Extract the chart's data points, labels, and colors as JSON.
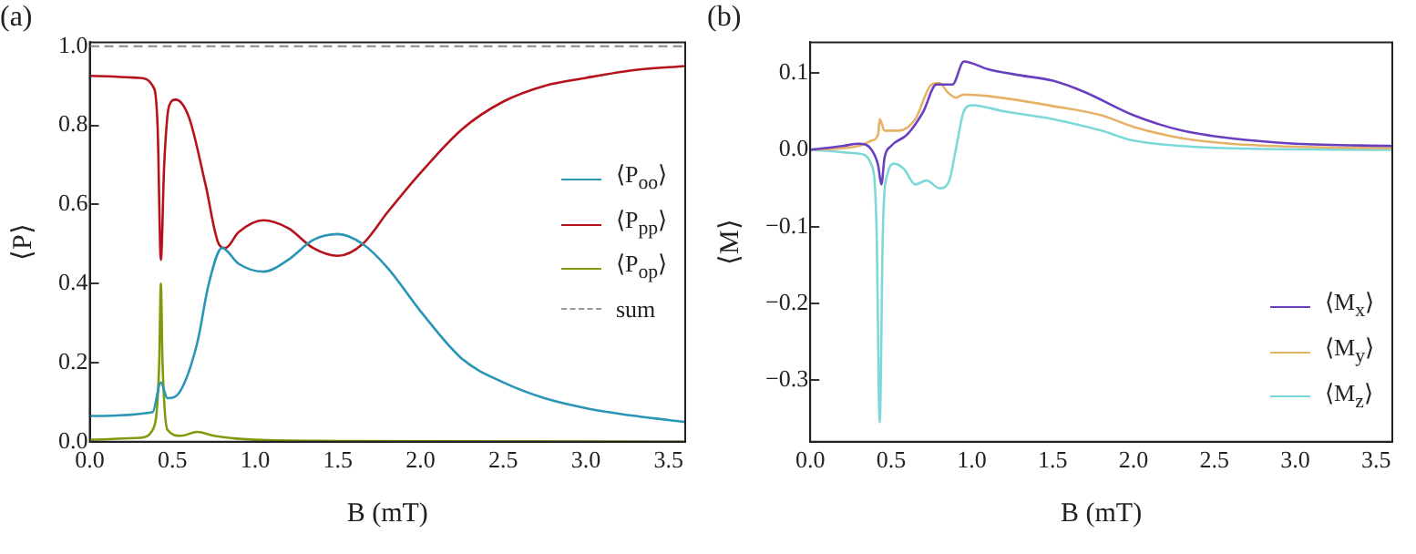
{
  "chart_data": [
    {
      "type": "line",
      "title": "(a)",
      "xlabel": "B (mT)",
      "ylabel": "⟨P⟩",
      "legend": "right",
      "xlim": [
        0,
        3.6
      ],
      "ylim": [
        0,
        1.01
      ],
      "xticks": [
        {
          "value": 0,
          "label": "0.0"
        },
        0.5,
        {
          "value": 1,
          "label": "1.0"
        },
        1.5,
        {
          "value": 2,
          "label": "2.0"
        },
        2.5,
        {
          "value": 3,
          "label": "3.0"
        },
        3.5
      ],
      "yticks": [
        {
          "value": 0,
          "label": "0.0"
        },
        0.2,
        0.4,
        0.6,
        0.8,
        {
          "value": 1,
          "label": "1.0"
        }
      ],
      "series": [
        {
          "name": "⟨P$_{oo}$⟩",
          "color": "#2a95b5",
          "x": [
            0,
            0.38,
            0.43,
            0.47,
            0.55,
            0.65,
            0.72,
            0.8,
            0.9,
            1.05,
            1.2,
            1.35,
            1.5,
            1.65,
            1.8,
            2.0,
            2.25,
            2.5,
            2.75,
            3.0,
            3.3,
            3.6
          ],
          "values": [
            0.065,
            0.075,
            0.15,
            0.11,
            0.13,
            0.25,
            0.4,
            0.49,
            0.45,
            0.43,
            0.46,
            0.51,
            0.525,
            0.5,
            0.44,
            0.33,
            0.21,
            0.15,
            0.11,
            0.085,
            0.065,
            0.05
          ]
        },
        {
          "name": "⟨P$_{pp}$⟩",
          "color": "#b5121b",
          "x": [
            0,
            0.3,
            0.38,
            0.41,
            0.43,
            0.45,
            0.48,
            0.52,
            0.6,
            0.7,
            0.78,
            0.82,
            0.9,
            1.05,
            1.2,
            1.35,
            1.5,
            1.65,
            1.8,
            2.0,
            2.25,
            2.5,
            2.75,
            3.0,
            3.3,
            3.6
          ],
          "values": [
            0.925,
            0.92,
            0.9,
            0.8,
            0.46,
            0.7,
            0.85,
            0.865,
            0.82,
            0.65,
            0.5,
            0.49,
            0.53,
            0.56,
            0.54,
            0.49,
            0.47,
            0.5,
            0.58,
            0.68,
            0.79,
            0.86,
            0.9,
            0.92,
            0.94,
            0.95
          ]
        },
        {
          "name": "⟨P$_{op}$⟩",
          "color": "#7f9a0c",
          "x": [
            0,
            0.3,
            0.38,
            0.42,
            0.43,
            0.44,
            0.47,
            0.55,
            0.65,
            0.75,
            1.0,
            1.5,
            3.6
          ],
          "values": [
            0.005,
            0.01,
            0.03,
            0.2,
            0.4,
            0.2,
            0.03,
            0.015,
            0.025,
            0.015,
            0.005,
            0.002,
            0
          ]
        },
        {
          "name": "sum",
          "color": "#999999",
          "line_style": "dashed",
          "x": [
            0,
            3.6
          ],
          "values": [
            1,
            1
          ]
        }
      ]
    },
    {
      "type": "line",
      "title": "(b)",
      "xlabel": "B (mT)",
      "ylabel": "⟨M⟩",
      "legend": "bottom right",
      "xlim": [
        0,
        3.6
      ],
      "ylim": [
        -0.38,
        0.14
      ],
      "xticks": [
        {
          "value": 0,
          "label": "0.0"
        },
        0.5,
        {
          "value": 1,
          "label": "1.0"
        },
        1.5,
        {
          "value": 2,
          "label": "2.0"
        },
        2.5,
        {
          "value": 3,
          "label": "3.0"
        },
        3.5
      ],
      "yticks": [
        {
          "value": -0.3,
          "label": "−0.3"
        },
        {
          "value": -0.2,
          "label": "−0.2"
        },
        {
          "value": -0.1,
          "label": "−0.1"
        },
        {
          "value": 0,
          "label": "0.0"
        },
        0.1
      ],
      "series": [
        {
          "name": "⟨M$_{x}$⟩",
          "color": "#6a3fbf",
          "x": [
            0,
            0.2,
            0.3,
            0.38,
            0.42,
            0.44,
            0.46,
            0.5,
            0.6,
            0.7,
            0.78,
            0.84,
            0.88,
            0.95,
            1.1,
            1.3,
            1.5,
            1.7,
            2.0,
            2.3,
            2.6,
            3.0,
            3.6
          ],
          "values": [
            0,
            0.005,
            0.008,
            0,
            -0.02,
            -0.045,
            -0.01,
            0.005,
            0.02,
            0.05,
            0.085,
            0.085,
            0.085,
            0.115,
            0.105,
            0.097,
            0.09,
            0.075,
            0.045,
            0.025,
            0.015,
            0.008,
            0.005
          ]
        },
        {
          "name": "⟨M$_{y}$⟩",
          "color": "#e6b267",
          "x": [
            0,
            0.3,
            0.38,
            0.42,
            0.43,
            0.46,
            0.55,
            0.65,
            0.75,
            0.8,
            0.85,
            0.9,
            0.95,
            1.1,
            1.5,
            1.8,
            2.0,
            2.3,
            2.6,
            3.0,
            3.6
          ],
          "values": [
            0,
            0.005,
            0.012,
            0.02,
            0.04,
            0.025,
            0.025,
            0.04,
            0.085,
            0.087,
            0.075,
            0.068,
            0.072,
            0.07,
            0.057,
            0.045,
            0.03,
            0.015,
            0.008,
            0.004,
            0.002
          ]
        },
        {
          "name": "⟨M$_{z}$⟩",
          "color": "#7dd8d8",
          "x": [
            0,
            0.3,
            0.38,
            0.41,
            0.43,
            0.45,
            0.48,
            0.52,
            0.58,
            0.65,
            0.72,
            0.8,
            0.86,
            0.9,
            0.95,
            1.0,
            1.2,
            1.5,
            1.8,
            2.0,
            2.3,
            2.6,
            3.6
          ],
          "values": [
            0,
            -0.005,
            -0.02,
            -0.1,
            -0.355,
            -0.1,
            -0.03,
            -0.018,
            -0.025,
            -0.045,
            -0.04,
            -0.05,
            -0.04,
            0,
            0.05,
            0.058,
            0.05,
            0.04,
            0.025,
            0.012,
            0.005,
            0.002,
            0
          ]
        }
      ]
    }
  ]
}
